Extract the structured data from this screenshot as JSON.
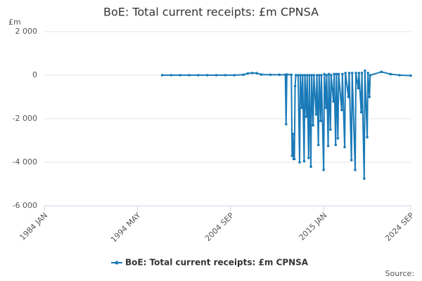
{
  "chart_data": {
    "type": "line",
    "title": "BoE: Total current receipts: £m CPNSA",
    "y_unit_label": "£m",
    "source": "Source:",
    "xlim": [
      "1984 JAN",
      "2024 SEP"
    ],
    "xticks": [
      "1984 JAN",
      "1994 MAY",
      "2004 SEP",
      "2015 JAN",
      "2024 SEP"
    ],
    "ylim": [
      -6000,
      2000
    ],
    "yticks": [
      {
        "value": 2000,
        "label": "2 000"
      },
      0,
      {
        "value": -2000,
        "label": "-2 000"
      },
      {
        "value": -4000,
        "label": "-4 000"
      },
      {
        "value": -6000,
        "label": "-6 000"
      }
    ],
    "grid": true,
    "legend": "bottom",
    "x": [
      "1997 FEB",
      "1998 FEB",
      "1999 FEB",
      "2000 FEB",
      "2001 FEB",
      "2002 FEB",
      "2003 FEB",
      "2004 FEB",
      "2005 FEB",
      "2006 FEB",
      "2006 AUG",
      "2007 FEB",
      "2007 AUG",
      "2008 FEB",
      "2009 FEB",
      "2010 FEB",
      "2010 OCT",
      "2010 NOV",
      "2010 DEC",
      "2011 JUN",
      "2011 JUL",
      "2011 AUG",
      "2011 SEP",
      "2011 OCT",
      "2011 NOV",
      "2011 DEC",
      "2012 MAR",
      "2012 MAY",
      "2012 JUN",
      "2012 AUG",
      "2012 SEP",
      "2012 NOV",
      "2012 DEC",
      "2013 FEB",
      "2013 MAR",
      "2013 MAY",
      "2013 JUN",
      "2013 AUG",
      "2013 SEP",
      "2013 NOV",
      "2013 DEC",
      "2014 MAR",
      "2014 APR",
      "2014 JUN",
      "2014 JUL",
      "2014 SEP",
      "2014 OCT",
      "2015 JAN",
      "2015 FEB",
      "2015 APR",
      "2015 MAY",
      "2015 JUL",
      "2015 AUG",
      "2015 OCT",
      "2015 NOV",
      "2016 FEB",
      "2016 MAR",
      "2016 MAY",
      "2016 JUN",
      "2016 AUG",
      "2016 SEP",
      "2017 JAN",
      "2017 FEB",
      "2017 MAY",
      "2017 JUN",
      "2017 OCT",
      "2017 NOV",
      "2018 FEB",
      "2018 MAR",
      "2018 JUL",
      "2018 AUG",
      "2018 NOV",
      "2018 DEC",
      "2019 MAR",
      "2019 APR",
      "2019 JUL",
      "2019 AUG",
      "2019 NOV",
      "2019 DEC",
      "2020 FEB",
      "2020 MAR",
      "2021 JUN",
      "2022 JUN",
      "2023 JUN",
      "2024 SEP"
    ],
    "series": [
      {
        "name": "BoE: Total current receipts: £m CPNSA",
        "color": "#1a7ab8",
        "values": [
          0,
          0,
          0,
          0,
          0,
          0,
          0,
          0,
          0,
          20,
          80,
          100,
          90,
          30,
          20,
          20,
          20,
          -2250,
          30,
          20,
          -3700,
          -2700,
          -3850,
          -3850,
          -500,
          0,
          0,
          -4000,
          0,
          -1500,
          0,
          -3950,
          0,
          -1900,
          0,
          -3800,
          0,
          -4200,
          0,
          -2300,
          0,
          -1800,
          0,
          -3200,
          0,
          -2100,
          0,
          -4350,
          50,
          -1500,
          0,
          -3250,
          50,
          -2500,
          0,
          -1200,
          50,
          -3200,
          50,
          -2900,
          50,
          -1600,
          50,
          -3300,
          100,
          -1000,
          100,
          -3900,
          100,
          -4350,
          100,
          -600,
          100,
          -1700,
          100,
          -4750,
          200,
          -2850,
          100,
          -1000,
          0,
          150,
          50,
          0,
          -20
        ]
      }
    ]
  }
}
